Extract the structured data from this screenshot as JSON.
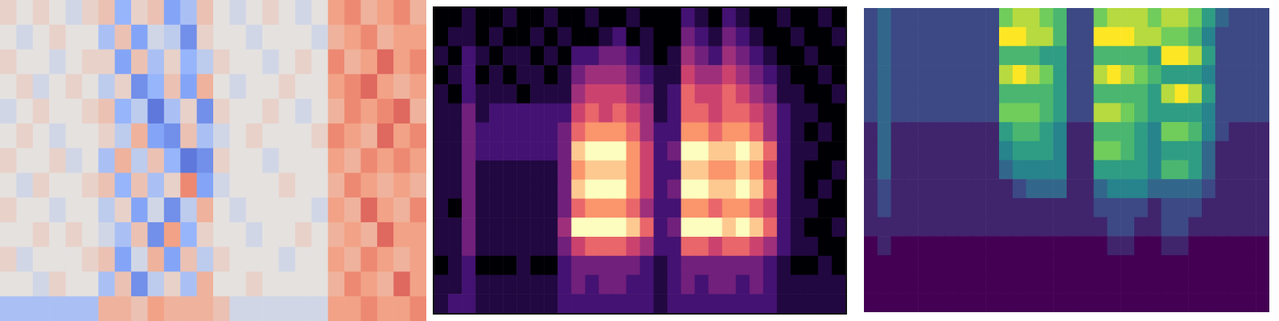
{
  "chart_data": [
    {
      "type": "heatmap",
      "color": "coolwarm",
      "tick_labels": false,
      "zlim": [
        -9,
        9
      ],
      "cells": [
        [
          1,
          0,
          1,
          0,
          -1,
          1,
          2,
          -4,
          1,
          2,
          -5,
          -3,
          2,
          0,
          -1,
          0,
          1,
          0,
          -1,
          0,
          4,
          5,
          3,
          4,
          5,
          3
        ],
        [
          0,
          -1,
          0,
          1,
          0,
          0,
          -3,
          2,
          -5,
          -1,
          -2,
          -6,
          1,
          0,
          0,
          -1,
          0,
          0,
          0,
          -1,
          3,
          4,
          5,
          3,
          4,
          4
        ],
        [
          1,
          0,
          0,
          -1,
          0,
          1,
          1,
          -5,
          2,
          -3,
          1,
          -4,
          -2,
          1,
          0,
          0,
          -1,
          0,
          1,
          0,
          5,
          3,
          4,
          6,
          4,
          5
        ],
        [
          0,
          1,
          -1,
          0,
          1,
          0,
          -2,
          1,
          -6,
          -4,
          2,
          -5,
          3,
          0,
          -1,
          0,
          0,
          1,
          0,
          0,
          4,
          5,
          6,
          4,
          3,
          4
        ],
        [
          -1,
          0,
          1,
          0,
          0,
          1,
          2,
          -4,
          -2,
          -7,
          -3,
          1,
          -6,
          1,
          0,
          0,
          1,
          0,
          -1,
          0,
          3,
          5,
          4,
          5,
          6,
          3
        ],
        [
          0,
          1,
          0,
          -1,
          0,
          0,
          1,
          -2,
          3,
          -5,
          -6,
          2,
          -3,
          -1,
          0,
          1,
          0,
          0,
          0,
          1,
          5,
          4,
          3,
          6,
          4,
          5
        ],
        [
          1,
          0,
          0,
          1,
          -1,
          0,
          -3,
          3,
          -2,
          2,
          -4,
          -7,
          -6,
          1,
          0,
          0,
          -1,
          0,
          0,
          0,
          4,
          3,
          5,
          4,
          5,
          4
        ],
        [
          0,
          -1,
          1,
          0,
          0,
          1,
          2,
          -4,
          2,
          -3,
          1,
          5,
          -5,
          -1,
          0,
          0,
          0,
          1,
          0,
          0,
          3,
          5,
          4,
          3,
          4,
          3
        ],
        [
          1,
          0,
          0,
          -1,
          0,
          0,
          -2,
          1,
          -5,
          -1,
          -6,
          -2,
          3,
          0,
          -1,
          0,
          0,
          0,
          0,
          -1,
          4,
          3,
          6,
          4,
          3,
          5
        ],
        [
          0,
          0,
          1,
          0,
          1,
          0,
          -1,
          -3,
          2,
          -6,
          4,
          -4,
          1,
          0,
          0,
          -1,
          0,
          0,
          1,
          0,
          3,
          4,
          3,
          6,
          4,
          4
        ],
        [
          1,
          -1,
          0,
          0,
          0,
          1,
          2,
          -5,
          -1,
          3,
          -5,
          2,
          -2,
          1,
          0,
          0,
          0,
          -1,
          0,
          0,
          4,
          3,
          5,
          4,
          3,
          4
        ],
        [
          0,
          0,
          -1,
          1,
          0,
          0,
          -3,
          2,
          -6,
          -2,
          1,
          -3,
          3,
          0,
          0,
          1,
          0,
          0,
          0,
          0,
          3,
          5,
          4,
          3,
          6,
          4
        ],
        [
          -3,
          -3,
          -3,
          -3,
          -3,
          -3,
          3,
          3,
          2,
          4,
          3,
          3,
          3,
          2,
          -1,
          -1,
          -1,
          -1,
          -1,
          -1,
          4,
          4,
          5,
          4,
          4,
          5
        ]
      ]
    },
    {
      "type": "heatmap",
      "color": "magma",
      "tick_labels": false,
      "zlim": [
        0,
        9
      ],
      "cells": [
        [
          0,
          0,
          1,
          0,
          0,
          1,
          0,
          0,
          1,
          0,
          0,
          1,
          0,
          0,
          1,
          0,
          0,
          0,
          2,
          1,
          0,
          2,
          1,
          0,
          0,
          1,
          0,
          0,
          1,
          0
        ],
        [
          0,
          1,
          1,
          0,
          1,
          0,
          0,
          1,
          0,
          1,
          0,
          0,
          1,
          2,
          0,
          1,
          0,
          0,
          3,
          2,
          1,
          3,
          2,
          1,
          0,
          0,
          1,
          0,
          0,
          1
        ],
        [
          1,
          0,
          2,
          1,
          0,
          1,
          1,
          0,
          1,
          0,
          2,
          2,
          3,
          3,
          2,
          1,
          0,
          1,
          4,
          3,
          2,
          4,
          3,
          2,
          1,
          0,
          0,
          1,
          0,
          0
        ],
        [
          0,
          1,
          2,
          0,
          1,
          0,
          1,
          1,
          0,
          1,
          3,
          4,
          4,
          4,
          3,
          2,
          1,
          1,
          5,
          4,
          4,
          5,
          4,
          3,
          2,
          1,
          0,
          0,
          1,
          0
        ],
        [
          1,
          0,
          2,
          1,
          1,
          1,
          0,
          1,
          1,
          1,
          4,
          5,
          5,
          5,
          4,
          3,
          1,
          2,
          6,
          5,
          5,
          6,
          5,
          4,
          3,
          1,
          1,
          0,
          0,
          1
        ],
        [
          1,
          1,
          3,
          1,
          2,
          2,
          2,
          2,
          2,
          2,
          5,
          6,
          5,
          6,
          5,
          4,
          1,
          2,
          6,
          6,
          5,
          6,
          6,
          5,
          4,
          2,
          1,
          1,
          0,
          0
        ],
        [
          1,
          1,
          3,
          2,
          2,
          2,
          2,
          2,
          2,
          3,
          6,
          7,
          7,
          7,
          6,
          4,
          2,
          2,
          7,
          7,
          6,
          7,
          7,
          6,
          4,
          2,
          1,
          0,
          1,
          0
        ],
        [
          1,
          1,
          3,
          2,
          2,
          2,
          2,
          2,
          2,
          3,
          8,
          9,
          9,
          9,
          7,
          5,
          2,
          3,
          9,
          9,
          8,
          8,
          9,
          8,
          6,
          2,
          1,
          1,
          0,
          0
        ],
        [
          1,
          1,
          3,
          1,
          1,
          1,
          1,
          1,
          1,
          3,
          7,
          8,
          8,
          8,
          7,
          5,
          2,
          2,
          8,
          8,
          7,
          7,
          8,
          7,
          5,
          2,
          1,
          0,
          0,
          1
        ],
        [
          1,
          1,
          3,
          1,
          1,
          1,
          1,
          1,
          1,
          3,
          8,
          9,
          9,
          9,
          7,
          5,
          2,
          3,
          9,
          9,
          8,
          8,
          9,
          8,
          6,
          2,
          1,
          0,
          1,
          0
        ],
        [
          1,
          0,
          3,
          1,
          1,
          1,
          1,
          1,
          1,
          3,
          6,
          7,
          7,
          7,
          6,
          4,
          2,
          2,
          7,
          7,
          6,
          7,
          7,
          6,
          5,
          2,
          1,
          1,
          0,
          0
        ],
        [
          1,
          1,
          3,
          1,
          1,
          1,
          1,
          1,
          1,
          4,
          9,
          9,
          9,
          9,
          8,
          6,
          2,
          3,
          9,
          9,
          9,
          8,
          9,
          8,
          6,
          2,
          1,
          0,
          0,
          1
        ],
        [
          1,
          1,
          3,
          1,
          1,
          1,
          1,
          1,
          1,
          3,
          5,
          6,
          6,
          6,
          5,
          4,
          2,
          2,
          6,
          6,
          5,
          6,
          6,
          5,
          4,
          2,
          1,
          1,
          0,
          0
        ],
        [
          0,
          1,
          2,
          0,
          0,
          0,
          1,
          0,
          0,
          2,
          3,
          3,
          3,
          3,
          3,
          2,
          1,
          2,
          3,
          3,
          3,
          3,
          3,
          3,
          2,
          1,
          0,
          0,
          1,
          0
        ],
        [
          1,
          1,
          2,
          1,
          1,
          1,
          1,
          1,
          1,
          2,
          3,
          2,
          3,
          3,
          2,
          2,
          1,
          2,
          3,
          2,
          3,
          3,
          2,
          3,
          2,
          1,
          1,
          1,
          1,
          1
        ],
        [
          1,
          2,
          2,
          1,
          1,
          1,
          1,
          1,
          1,
          2,
          2,
          2,
          2,
          2,
          2,
          2,
          1,
          2,
          2,
          2,
          2,
          2,
          2,
          2,
          2,
          1,
          1,
          1,
          1,
          1
        ]
      ]
    },
    {
      "type": "heatmap",
      "color": "viridis",
      "tick_labels": false,
      "zlim": [
        0,
        9
      ],
      "cells": [
        [
          2,
          3,
          2,
          2,
          2,
          2,
          2,
          2,
          2,
          2,
          7,
          8,
          8,
          7,
          6,
          2,
          2,
          7,
          8,
          8,
          8,
          7,
          8,
          8,
          7,
          5,
          3,
          2,
          2,
          2
        ],
        [
          2,
          3,
          2,
          2,
          2,
          2,
          2,
          2,
          2,
          2,
          9,
          9,
          8,
          8,
          6,
          2,
          2,
          9,
          9,
          9,
          8,
          8,
          7,
          7,
          6,
          4,
          2,
          2,
          2,
          2
        ],
        [
          2,
          3,
          2,
          2,
          2,
          2,
          2,
          2,
          2,
          2,
          6,
          6,
          6,
          5,
          5,
          2,
          2,
          6,
          6,
          6,
          6,
          5,
          9,
          9,
          8,
          5,
          2,
          2,
          2,
          2
        ],
        [
          2,
          3,
          2,
          2,
          2,
          2,
          2,
          2,
          2,
          2,
          8,
          9,
          8,
          7,
          5,
          2,
          2,
          8,
          9,
          8,
          7,
          6,
          5,
          5,
          5,
          4,
          2,
          2,
          2,
          2
        ],
        [
          2,
          3,
          2,
          2,
          2,
          2,
          2,
          2,
          2,
          2,
          6,
          6,
          6,
          6,
          5,
          2,
          2,
          6,
          6,
          6,
          6,
          5,
          8,
          9,
          8,
          5,
          2,
          2,
          2,
          2
        ],
        [
          2,
          3,
          2,
          2,
          2,
          2,
          2,
          2,
          2,
          2,
          7,
          7,
          7,
          6,
          5,
          2,
          2,
          8,
          8,
          7,
          6,
          5,
          5,
          5,
          5,
          4,
          2,
          2,
          2,
          2
        ],
        [
          1,
          3,
          1,
          1,
          1,
          1,
          1,
          1,
          1,
          1,
          5,
          6,
          6,
          5,
          4,
          1,
          1,
          6,
          6,
          6,
          5,
          4,
          7,
          7,
          6,
          4,
          2,
          1,
          1,
          1
        ],
        [
          1,
          3,
          1,
          1,
          1,
          1,
          1,
          1,
          1,
          1,
          4,
          5,
          5,
          5,
          4,
          1,
          1,
          7,
          7,
          6,
          5,
          4,
          5,
          5,
          5,
          3,
          1,
          1,
          1,
          1
        ],
        [
          1,
          3,
          1,
          1,
          1,
          1,
          1,
          1,
          1,
          1,
          3,
          4,
          4,
          4,
          4,
          1,
          1,
          5,
          5,
          5,
          5,
          4,
          6,
          6,
          5,
          3,
          1,
          1,
          1,
          1
        ],
        [
          1,
          2,
          1,
          1,
          1,
          1,
          1,
          1,
          1,
          1,
          1,
          2,
          3,
          3,
          3,
          1,
          1,
          3,
          4,
          4,
          4,
          3,
          3,
          3,
          3,
          2,
          1,
          1,
          1,
          1
        ],
        [
          1,
          2,
          1,
          1,
          1,
          1,
          1,
          1,
          1,
          1,
          1,
          1,
          1,
          1,
          1,
          1,
          1,
          2,
          2,
          2,
          2,
          1,
          2,
          2,
          2,
          1,
          1,
          1,
          1,
          1
        ],
        [
          1,
          1,
          1,
          1,
          1,
          1,
          1,
          1,
          1,
          1,
          1,
          1,
          1,
          1,
          1,
          1,
          1,
          1,
          2,
          2,
          1,
          1,
          2,
          2,
          1,
          1,
          1,
          1,
          1,
          1
        ],
        [
          0,
          1,
          0,
          0,
          0,
          0,
          0,
          0,
          0,
          0,
          0,
          0,
          0,
          0,
          0,
          0,
          0,
          0,
          1,
          1,
          0,
          0,
          1,
          1,
          0,
          0,
          0,
          0,
          0,
          0
        ],
        [
          0,
          0,
          0,
          0,
          0,
          0,
          0,
          0,
          0,
          0,
          0,
          0,
          0,
          0,
          0,
          0,
          0,
          0,
          0,
          0,
          0,
          0,
          0,
          0,
          0,
          0,
          0,
          0,
          0,
          0
        ],
        [
          0,
          0,
          0,
          0,
          0,
          0,
          0,
          0,
          0,
          0,
          0,
          0,
          0,
          0,
          0,
          0,
          0,
          0,
          0,
          0,
          0,
          0,
          0,
          0,
          0,
          0,
          0,
          0,
          0,
          0
        ],
        [
          0,
          0,
          0,
          0,
          0,
          0,
          0,
          0,
          0,
          0,
          0,
          0,
          0,
          0,
          0,
          0,
          0,
          0,
          0,
          0,
          0,
          0,
          0,
          0,
          0,
          0,
          0,
          0,
          0,
          0
        ]
      ]
    }
  ]
}
